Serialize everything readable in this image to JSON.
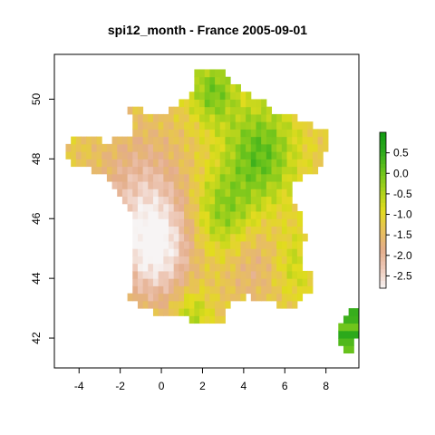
{
  "title": "spi12_month - France 2005-09-01",
  "map": {
    "x_ticks": [
      "-4",
      "-2",
      "0",
      "2",
      "4",
      "6",
      "8"
    ],
    "y_ticks": [
      "42",
      "44",
      "46",
      "48",
      "50"
    ],
    "xlim": [
      -5.2,
      9.6
    ],
    "ylim": [
      41.0,
      51.5
    ]
  },
  "legend": {
    "ticks": [
      "0.5",
      "0.0",
      "-0.5",
      "-1.0",
      "-1.5",
      "-2.0",
      "-2.5"
    ],
    "range": [
      -2.8,
      1.0
    ],
    "colors": [
      "#f7f4f4",
      "#eecaba",
      "#e4ad8a",
      "#e8c15a",
      "#e2dc1e",
      "#aad21c",
      "#6cc41c",
      "#2eaa1c",
      "#129a12"
    ]
  },
  "colors": {
    "wet": "#2eaa1c",
    "near_normal": "#e2dc1e",
    "moderate_dry": "#e4ad8a",
    "extreme_dry": "#f7f4f4"
  }
}
